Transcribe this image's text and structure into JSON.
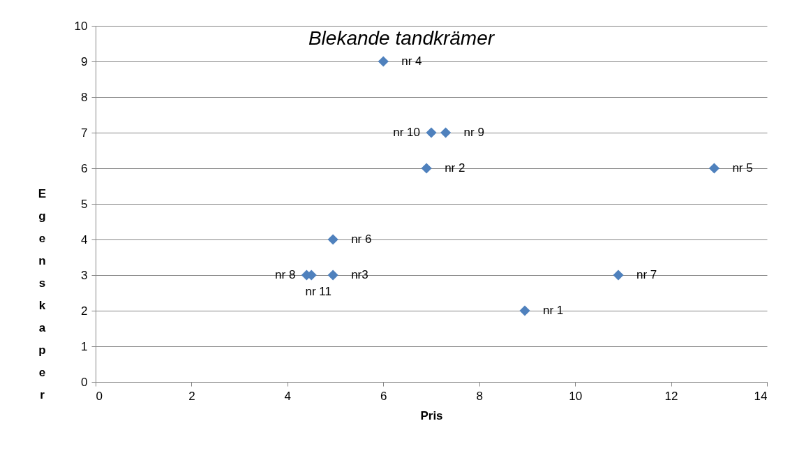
{
  "chart_data": {
    "type": "scatter",
    "title": "Blekande tandkrämer",
    "xlabel": "Pris",
    "ylabel": "Egenskaper",
    "x": [
      6,
      7,
      7.3,
      6.9,
      12.9,
      4.95,
      4.4,
      4.5,
      4.95,
      10.9,
      8.95
    ],
    "values": [
      9,
      7,
      7,
      6,
      6,
      4,
      3,
      3,
      3,
      3,
      2
    ],
    "color": "#4f81bd",
    "marker": "diamond",
    "grid": "y",
    "legend": false,
    "xlim": [
      0,
      14
    ],
    "xticks": [
      0,
      2,
      4,
      6,
      8,
      10,
      12,
      14
    ],
    "ylim": [
      0,
      10
    ],
    "yticks": [
      0,
      1,
      2,
      3,
      4,
      5,
      6,
      7,
      8,
      9,
      10
    ],
    "annotations": [
      {
        "text": "nr 4",
        "x": 6,
        "y": 9
      },
      {
        "text": "nr 10",
        "x": 7,
        "y": 7
      },
      {
        "text": "nr 9",
        "x": 7.3,
        "y": 7
      },
      {
        "text": "nr 2",
        "x": 6.9,
        "y": 6
      },
      {
        "text": "nr 5",
        "x": 12.9,
        "y": 6
      },
      {
        "text": "nr 6",
        "x": 4.95,
        "y": 4
      },
      {
        "text": "nr 8",
        "x": 4.4,
        "y": 3
      },
      {
        "text": "nr 11",
        "x": 4.5,
        "y": 3
      },
      {
        "text": "nr3",
        "x": 4.95,
        "y": 3
      },
      {
        "text": "nr 7",
        "x": 10.9,
        "y": 3
      },
      {
        "text": "nr 1",
        "x": 8.95,
        "y": 2
      }
    ]
  }
}
